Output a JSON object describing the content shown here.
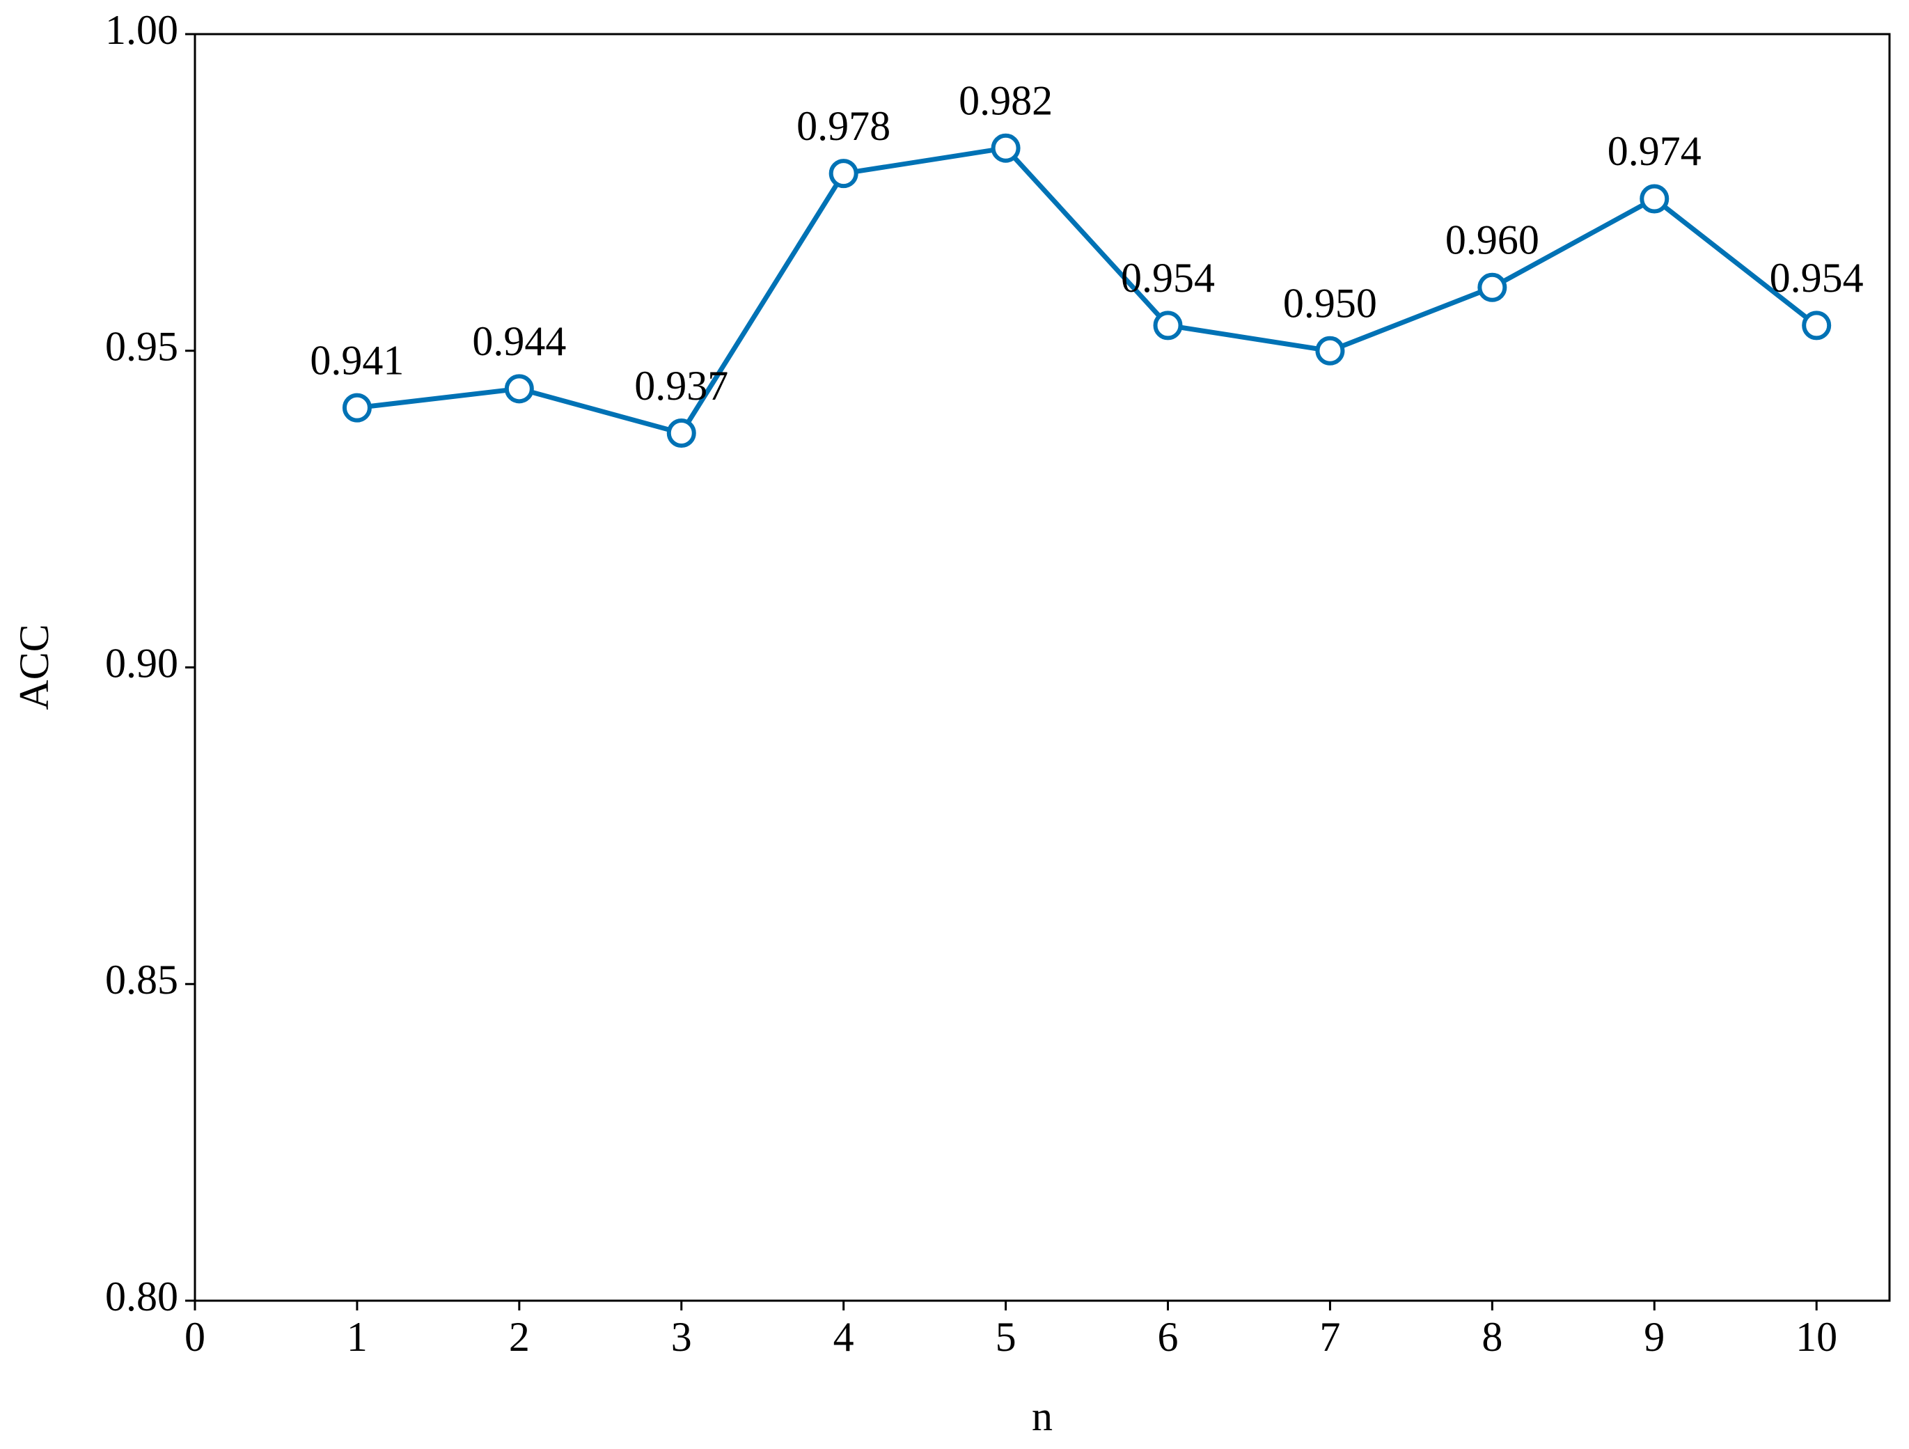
{
  "chart_data": {
    "type": "line",
    "x": [
      1,
      2,
      3,
      4,
      5,
      6,
      7,
      8,
      9,
      10
    ],
    "series": [
      {
        "color": "#0072b5",
        "values": [
          0.941,
          0.944,
          0.937,
          0.978,
          0.982,
          0.954,
          0.95,
          0.96,
          0.974,
          0.954
        ],
        "value_labels": [
          "0.941",
          "0.944",
          "0.937",
          "0.978",
          "0.982",
          "0.954",
          "0.950",
          "0.960",
          "0.974",
          "0.954"
        ]
      }
    ],
    "xlabel": "n",
    "ylabel": "ACC",
    "xlim": [
      0,
      10.45
    ],
    "ylim": [
      0.8,
      1.0
    ],
    "xticks": [
      0,
      1,
      2,
      3,
      4,
      5,
      6,
      7,
      8,
      9,
      10
    ],
    "yticks": [
      {
        "value": 0.8,
        "label": "0.80"
      },
      0.85,
      {
        "value": 0.9,
        "label": "0.90"
      },
      0.95,
      {
        "value": 1.0,
        "label": "1.00"
      }
    ],
    "grid": false
  }
}
